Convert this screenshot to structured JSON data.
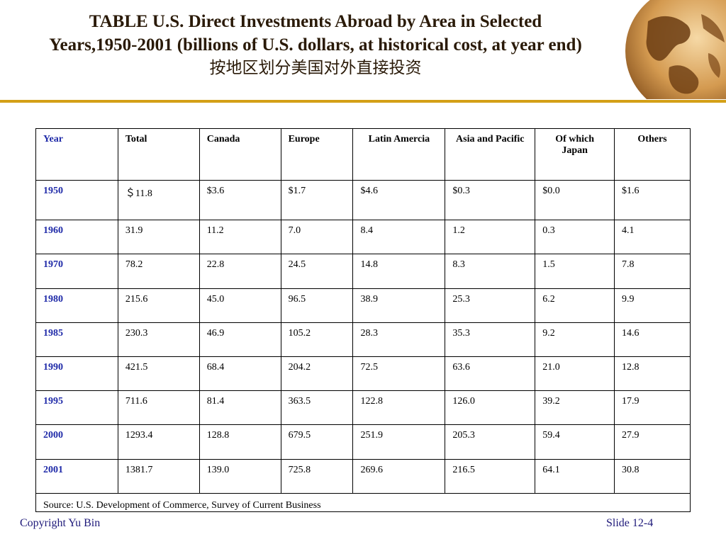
{
  "slide": {
    "title_line1": "TABLE U.S. Direct Investments Abroad by Area in Selected",
    "title_line2": "Years,1950-2001 (billions of U.S. dollars, at historical cost, at year end)",
    "title_cn": "按地区划分美国对外直接投资"
  },
  "table": {
    "headers": [
      "Year",
      "Total",
      "Canada",
      "Europe",
      "Latin Amercia",
      "Asia and Pacific",
      "Of which Japan",
      "Others"
    ],
    "rows": [
      [
        "1950",
        "＄11.8",
        "$3.6",
        "$1.7",
        "$4.6",
        "$0.3",
        "$0.0",
        "$1.6"
      ],
      [
        "1960",
        "31.9",
        "11.2",
        "7.0",
        "8.4",
        "1.2",
        "0.3",
        "4.1"
      ],
      [
        "1970",
        "78.2",
        "22.8",
        "24.5",
        "14.8",
        "8.3",
        "1.5",
        "7.8"
      ],
      [
        "1980",
        "215.6",
        "45.0",
        "96.5",
        "38.9",
        "25.3",
        "6.2",
        "9.9"
      ],
      [
        "1985",
        "230.3",
        "46.9",
        "105.2",
        "28.3",
        "35.3",
        "9.2",
        "14.6"
      ],
      [
        "1990",
        "421.5",
        "68.4",
        "204.2",
        "72.5",
        "63.6",
        "21.0",
        "12.8"
      ],
      [
        "1995",
        "711.6",
        "81.4",
        "363.5",
        "122.8",
        "126.0",
        "39.2",
        "17.9"
      ],
      [
        "2000",
        "1293.4",
        "128.8",
        "679.5",
        "251.9",
        "205.3",
        "59.4",
        "27.9"
      ],
      [
        "2001",
        "1381.7",
        "139.0",
        "725.8",
        "269.6",
        "216.5",
        "64.1",
        "30.8"
      ]
    ],
    "source": "Source: U.S. Development of Commerce, Survey of Current Business"
  },
  "footer": {
    "copyright": "Copyright Yu Bin",
    "slide_number": "Slide 12-4"
  },
  "colors": {
    "accent_rule": "#d4a017",
    "year_text": "#1f2aa8",
    "footer_text": "#1f1a7a"
  },
  "icons": [
    "globe-decoration"
  ]
}
